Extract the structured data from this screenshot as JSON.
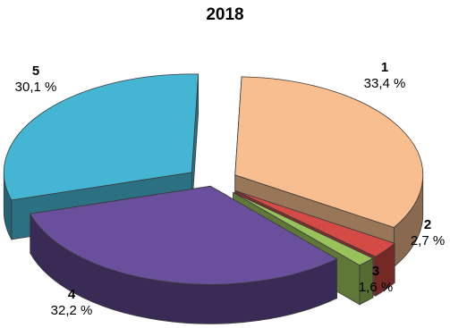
{
  "chart_data": {
    "type": "pie",
    "title": "2018",
    "exploded": true,
    "slices": [
      {
        "label": "1",
        "value": 33.4,
        "value_text": "33,4 %",
        "color": "#f9be8f"
      },
      {
        "label": "2",
        "value": 2.7,
        "value_text": "2,7 %",
        "color": "#d44a45"
      },
      {
        "label": "3",
        "value": 1.6,
        "value_text": "1,6 %",
        "color": "#99c25b"
      },
      {
        "label": "4",
        "value": 32.2,
        "value_text": "32,2 %",
        "color": "#6a4f9c"
      },
      {
        "label": "5",
        "value": 30.1,
        "value_text": "30,1 %",
        "color": "#45b5d4"
      }
    ]
  }
}
